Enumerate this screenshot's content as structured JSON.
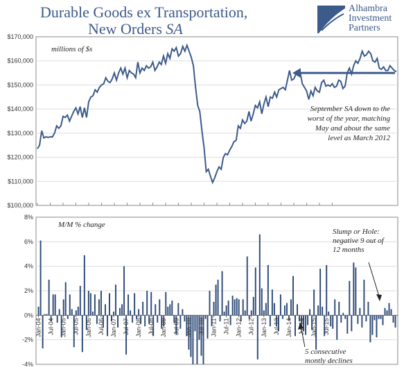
{
  "header": {
    "title_line1": "Durable Goods ex Transportation,",
    "title_line2_plain": "New Orders ",
    "title_line2_italic": "SA",
    "logo_line1": "Alhambra",
    "logo_line2": "Investment",
    "logo_line3": "Partners"
  },
  "colors": {
    "line": "#3c5a8a",
    "bar": "#2e4a78",
    "arrow": "#3c5a8a",
    "title": "#3c5a8a"
  },
  "chart_data": [
    {
      "type": "line",
      "ylabel": "millions of $s",
      "ylim": [
        100000,
        170000
      ],
      "y_ticks": [
        "$100,000",
        "$110,000",
        "$120,000",
        "$130,000",
        "$140,000",
        "$150,000",
        "$160,000",
        "$170,000"
      ],
      "annotation": [
        "September SA down to the",
        "worst of the year, matching",
        "May and about the same",
        "level as March 2012"
      ],
      "reference_level": 155000,
      "x_start": "Jan-04",
      "values": [
        123500,
        125000,
        131000,
        128000,
        128500,
        128200,
        128500,
        128400,
        130000,
        133000,
        132000,
        133000,
        137000,
        136500,
        137500,
        135000,
        137000,
        139000,
        140500,
        138000,
        141000,
        136500,
        140500,
        136500,
        143000,
        145000,
        145500,
        148000,
        147000,
        149000,
        150000,
        150500,
        153000,
        151500,
        151000,
        152500,
        155000,
        152000,
        155000,
        157000,
        154500,
        157000,
        153000,
        156000,
        155000,
        154500,
        153000,
        159500,
        155000,
        157000,
        156000,
        158000,
        157000,
        157500,
        159500,
        156000,
        157500,
        159500,
        158500,
        162000,
        159000,
        163000,
        161000,
        165000,
        164000,
        165500,
        162000,
        163000,
        166000,
        164000,
        166500,
        164000,
        161500,
        158000,
        149000,
        141500,
        139000,
        131000,
        124000,
        114000,
        115000,
        112000,
        109500,
        111500,
        114000,
        116000,
        115000,
        120000,
        121500,
        121000,
        123000,
        124500,
        126500,
        127000,
        133000,
        132000,
        135500,
        134000,
        135000,
        139000,
        135000,
        138000,
        141500,
        140500,
        143000,
        138000,
        142000,
        145000,
        141000,
        145000,
        144500,
        147000,
        145000,
        148000,
        148500,
        149000,
        148000,
        152000,
        156000,
        152000,
        152500,
        154500,
        155500,
        155000,
        150500,
        149000,
        147500,
        144000,
        147500,
        145500,
        149000,
        147500,
        147000,
        151000,
        152000,
        149500,
        150000,
        149500,
        150500,
        149000,
        149500,
        152000,
        151500,
        148500,
        149500,
        155000,
        157000,
        154500,
        158000,
        160000,
        159000,
        161000,
        164000,
        162000,
        162500,
        164000,
        163000,
        160000,
        159500,
        161000,
        157000,
        156500,
        157500,
        156000,
        156000,
        158000,
        157000,
        156000,
        155500
      ]
    },
    {
      "type": "bar",
      "ylabel": "M/M % change",
      "ylim": [
        -4,
        8
      ],
      "y_ticks": [
        "-4%",
        "-2%",
        "0%",
        "2%",
        "4%",
        "6%",
        "8%"
      ],
      "x_tick_labels": [
        "Jan-04",
        "Jul-04",
        "Jan-05",
        "Jul-05",
        "Jan-06",
        "Jul-06",
        "Jan-07",
        "Jul-07",
        "Jan-08",
        "Jul-08",
        "Jan-09",
        "Jul-09",
        "Jan-10",
        "Jul-10",
        "Jan-11",
        "Jul-11",
        "Jan-12",
        "Jul-12",
        "Jan-13",
        "Jul-13",
        "Jan-14",
        "Jul-14",
        "Jan-15",
        "Jul-15"
      ],
      "annotation_slump": [
        "Slump or Hole:",
        "negative 9 out of",
        "12 months"
      ],
      "annotation_declines": [
        "5 consecutive",
        "montly declines"
      ],
      "values": [
        0.7,
        6.1,
        -2.7,
        0.1,
        0.1,
        2.9,
        -0.5,
        1.7,
        1.7,
        -0.6,
        0.5,
        -1.8,
        1.3,
        2.7,
        -0.3,
        1.7,
        0.5,
        -2.6,
        0.4,
        0.7,
        2.4,
        -3.0,
        4.9,
        -1.2,
        2.0,
        1.8,
        0.3,
        1.7,
        -0.7,
        1.3,
        2.0,
        -1.0,
        0.9,
        -1.7,
        1.8,
        -0.5,
        0.3,
        2.5,
        -1.0,
        0.6,
        0.9,
        4.0,
        -3.2,
        1.7,
        0.4,
        -0.6,
        1.8,
        -0.3,
        0.5,
        -0.7,
        1.1,
        -0.9,
        2.0,
        -0.7,
        1.9,
        -1.7,
        0.9,
        -0.6,
        1.3,
        -1.1,
        -0.9,
        1.9,
        0.7,
        0.9,
        1.2,
        -0.6,
        -1.6,
        1.0,
        -1.1,
        0.5,
        -0.5,
        -1.7,
        -2.8,
        -3.4,
        -4.0,
        -1.3,
        -4.0,
        -2.0,
        -3.3,
        -4.0,
        -0.3,
        -1.9,
        2.0,
        -0.9,
        1.1,
        2.5,
        2.9,
        -0.5,
        3.6,
        0.3,
        0.8,
        1.2,
        -0.8,
        1.6,
        1.3,
        1.4,
        1.3,
        -0.5,
        1.3,
        0.4,
        4.8,
        -0.3,
        0.4,
        1.5,
        3.9,
        -3.6,
        6.6,
        2.2,
        0.4,
        1.0,
        4.1,
        -0.9,
        2.1,
        1.0,
        -0.9,
        -1.3,
        1.7,
        -0.3,
        0.8,
        1.0,
        -0.4,
        1.3,
        3.2,
        -1.7,
        0.9,
        -0.5,
        -0.9,
        -1.3,
        -1.6,
        -0.8,
        0.5,
        -1.2,
        2.1,
        -2.8,
        0.8,
        3.8,
        0.7,
        -1.7,
        4.1,
        0.3,
        -0.9,
        -1.1,
        1.3,
        -2.0,
        1.1,
        -0.6,
        0.2,
        -0.3,
        -1.5,
        2.8,
        -1.3,
        4.3,
        3.9,
        -0.7,
        0.6,
        -1.0,
        2.9,
        -0.5,
        1.1,
        -2.2,
        -1.6,
        -0.4,
        -1.8,
        -0.3,
        -0.3,
        -0.8,
        0.6,
        0.4,
        1.0,
        0.5,
        -0.6,
        -1.0
      ]
    }
  ]
}
